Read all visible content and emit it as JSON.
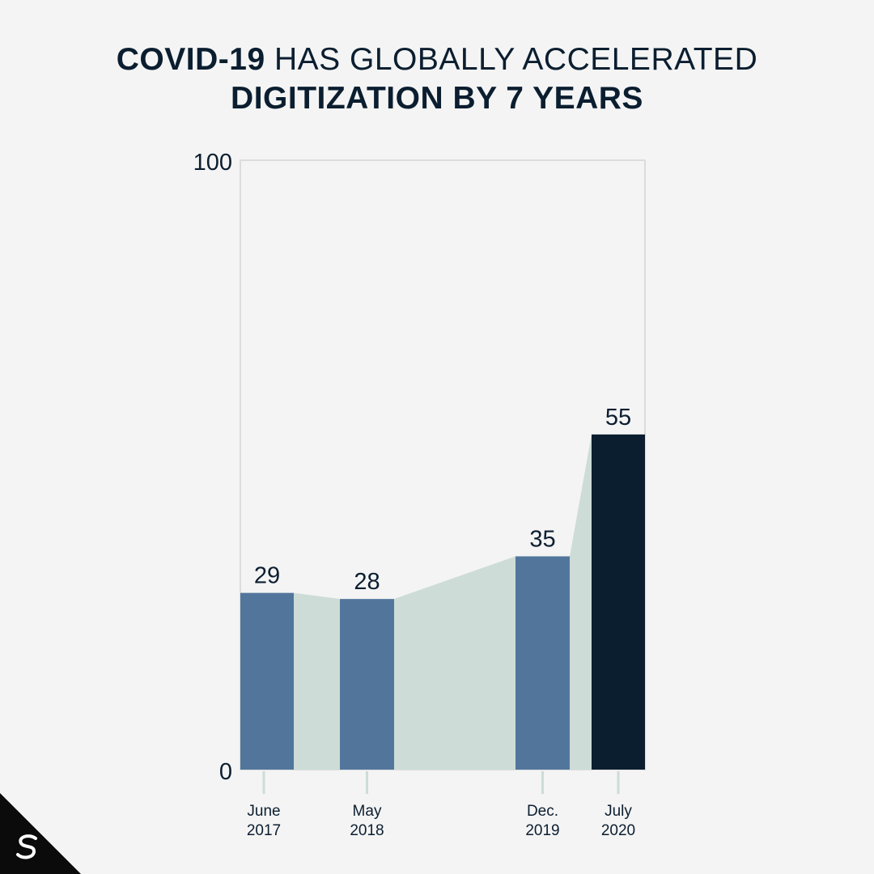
{
  "title": {
    "line1_bold": "COVID-19",
    "line1_rest": "HAS GLOBALLY ACCELERATED",
    "line2": "DIGITIZATION BY 7 YEARS"
  },
  "colors": {
    "background": "#f4f4f4",
    "bar": "#52769b",
    "bar_highlight": "#0b1e30",
    "area": "#cddcd7",
    "axis": "#dcdcdc",
    "text": "#0b1e30"
  },
  "brand": {
    "icon": "brand-logo-icon"
  },
  "chart_data": {
    "type": "bar",
    "categories": [
      "June 2017",
      "May 2018",
      "Dec. 2019",
      "July 2020"
    ],
    "category_lines": [
      [
        "June",
        "2017"
      ],
      [
        "May",
        "2018"
      ],
      [
        "Dec.",
        "2019"
      ],
      [
        "July",
        "2020"
      ]
    ],
    "values": [
      29,
      28,
      35,
      55
    ],
    "data_labels": [
      "29",
      "28",
      "35",
      "55"
    ],
    "highlight_index": 3,
    "x_dates": [
      "2017-06",
      "2018-05",
      "2019-12",
      "2020-07"
    ],
    "ylim": [
      0,
      100
    ],
    "y_ticks": [
      "0",
      "100"
    ],
    "connecting_area": true,
    "grid": false,
    "xlabel": "",
    "ylabel": ""
  }
}
